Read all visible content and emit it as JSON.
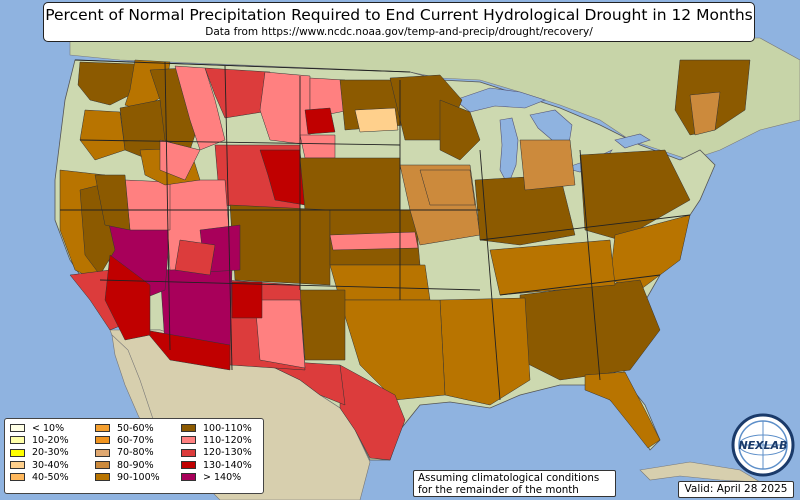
{
  "title": "Percent of Normal Precipitation Required to End Current Hydrological Drought in 12 Months",
  "subtitle": "Data from https://www.ncdc.noaa.gov/temp-and-precip/drought/recovery/",
  "legend": {
    "items": [
      {
        "label": "< 10%",
        "color": "#ffffe6"
      },
      {
        "label": "10-20%",
        "color": "#ffffa8"
      },
      {
        "label": "20-30%",
        "color": "#ffff00"
      },
      {
        "label": "30-40%",
        "color": "#ffd08c"
      },
      {
        "label": "40-50%",
        "color": "#ffb85c"
      },
      {
        "label": "50-60%",
        "color": "#f5a030"
      },
      {
        "label": "60-70%",
        "color": "#f09420"
      },
      {
        "label": "70-80%",
        "color": "#e0a870"
      },
      {
        "label": "80-90%",
        "color": "#cc8a3c"
      },
      {
        "label": "90-100%",
        "color": "#b87400"
      },
      {
        "label": "100-110%",
        "color": "#8c5a00"
      },
      {
        "label": "110-120%",
        "color": "#ff8080"
      },
      {
        "label": "120-130%",
        "color": "#dc3c3c"
      },
      {
        "label": "130-140%",
        "color": "#c00000"
      },
      {
        "label": "> 140%",
        "color": "#a8005a"
      }
    ]
  },
  "note": {
    "line1": "Assuming climatological conditions",
    "line2": "for the remainder of the month"
  },
  "valid_label": "Valid: April 28 2025",
  "logo_text": "NEXLAB",
  "colors": {
    "ocean": "#8fb3e0",
    "land": "#cdd9b0",
    "land_dark": "#a9bd88",
    "mexico": "#d7cfae"
  }
}
